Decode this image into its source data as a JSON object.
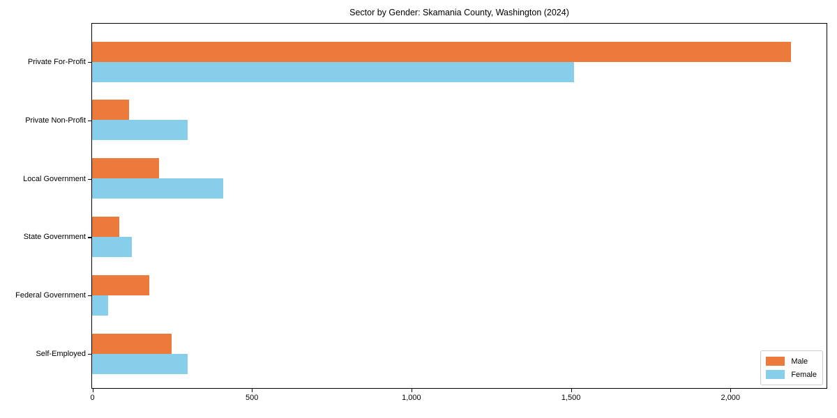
{
  "title": "Sector by Gender: Skamania County, Washington (2024)",
  "chart_data": {
    "type": "bar",
    "orientation": "horizontal",
    "title": "Sector by Gender: Skamania County, Washington (2024)",
    "xlabel": "",
    "ylabel": "",
    "categories": [
      "Private For-Profit",
      "Private Non-Profit",
      "Local Government",
      "State Government",
      "Federal Government",
      "Self-Employed"
    ],
    "series": [
      {
        "name": "Male",
        "color": "#EC7A3C",
        "values": [
          2190,
          115,
          210,
          85,
          180,
          250
        ]
      },
      {
        "name": "Female",
        "color": "#87CEEB",
        "values": [
          1510,
          300,
          410,
          125,
          50,
          300
        ]
      }
    ],
    "xlim": [
      0,
      2300
    ],
    "x_ticks": [
      0,
      500,
      1000,
      1500,
      2000
    ],
    "x_tick_labels": [
      "0",
      "500",
      "1,000",
      "1,500",
      "2,000"
    ],
    "grid": false,
    "legend_position": "lower right",
    "legend_items": [
      {
        "label": "Male",
        "color": "#EC7A3C"
      },
      {
        "label": "Female",
        "color": "#87CEEB"
      }
    ]
  }
}
